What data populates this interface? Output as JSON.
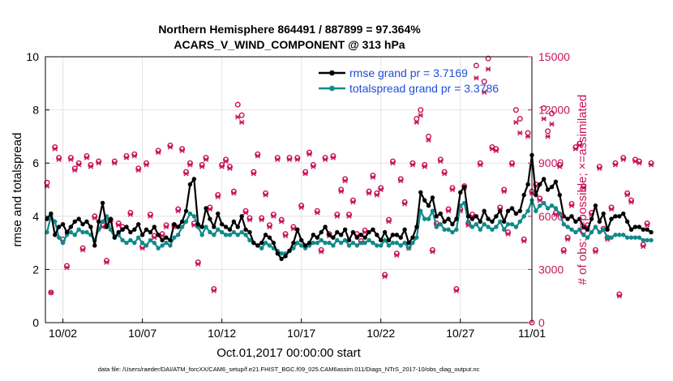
{
  "chart_data": {
    "type": "line",
    "title": [
      "Northern Hemisphere 864491 / 887899 = 97.364%",
      "ACARS_V_WIND_COMPONENT @ 313 hPa"
    ],
    "xlabel": "Oct.01,2017 00:00:00 start",
    "ylabel": "rmse and totalspread",
    "y2label": "# of obs: o=possible; ×=assimilated",
    "xlim": [
      0.4,
      31
    ],
    "ylim": [
      0,
      10
    ],
    "y2lim": [
      0,
      15000
    ],
    "xticks": [
      1.5,
      6.5,
      11.5,
      16.5,
      21.5,
      26.5,
      31
    ],
    "xtick_labels": [
      "10/02",
      "10/07",
      "10/12",
      "10/17",
      "10/22",
      "10/27",
      "11/01"
    ],
    "yticks": [
      0,
      2,
      4,
      6,
      8,
      10
    ],
    "ytick_labels": [
      "0",
      "2",
      "4",
      "6",
      "8",
      "10"
    ],
    "y2ticks": [
      0,
      3000,
      6000,
      9000,
      12000,
      15000
    ],
    "y2tick_labels": [
      "0",
      "3000",
      "6000",
      "9000",
      "12000",
      "15000"
    ],
    "legend_position": "top-right",
    "grid": true,
    "colors": {
      "rmse": "#000000",
      "spread": "#108a8a",
      "obs": "#c8145a",
      "legend_text": "#1f4ed8",
      "grid": "#e3e3e3"
    },
    "time_step": 0.25,
    "time_start": 0.5,
    "series": [
      {
        "name": "rmse",
        "legend": "rmse grand pr = 3.7169",
        "values": [
          3.9,
          4.1,
          3.3,
          3.6,
          3.7,
          3.4,
          3.6,
          3.8,
          3.9,
          3.7,
          3.8,
          3.6,
          2.9,
          3.8,
          4.5,
          3.6,
          3.9,
          3.2,
          3.4,
          3.5,
          3.6,
          3.4,
          3.5,
          3.7,
          3.3,
          3.5,
          3.4,
          3.6,
          3.3,
          3.1,
          3.2,
          3.1,
          3.7,
          3.6,
          3.8,
          4.2,
          5.2,
          5.4,
          3.7,
          3.6,
          4.3,
          3.9,
          3.6,
          4.1,
          3.7,
          3.6,
          3.5,
          3.8,
          3.6,
          4.0,
          3.5,
          3.4,
          3.0,
          2.9,
          3.0,
          3.3,
          3.2,
          3.0,
          2.6,
          2.4,
          2.5,
          2.7,
          3.0,
          3.5,
          3.1,
          2.9,
          3.0,
          3.3,
          3.2,
          3.4,
          3.6,
          3.3,
          3.2,
          3.4,
          3.3,
          3.5,
          3.1,
          3.4,
          3.2,
          3.3,
          3.2,
          3.4,
          3.5,
          3.3,
          3.1,
          3.4,
          3.1,
          3.3,
          3.3,
          3.2,
          3.5,
          3.0,
          3.2,
          3.6,
          4.9,
          4.6,
          4.4,
          4.7,
          4.0,
          4.1,
          3.8,
          3.9,
          3.7,
          3.9,
          4.9,
          5.1,
          4.0,
          3.9,
          4.0,
          3.8,
          4.2,
          3.9,
          3.8,
          4.0,
          4.2,
          3.8,
          4.2,
          4.3,
          4.1,
          4.2,
          4.8,
          5.2,
          6.3,
          4.8,
          5.2,
          5.4,
          5.0,
          5.1,
          5.3,
          4.8,
          4.0,
          3.9,
          4.0,
          3.8,
          3.9,
          3.6,
          3.5,
          3.9,
          4.4,
          3.8,
          4.1,
          3.5,
          3.9,
          4.0,
          4.0,
          4.1,
          3.8,
          3.5,
          3.6,
          3.6,
          3.5,
          3.5,
          3.4
        ]
      },
      {
        "name": "totalspread",
        "legend": "totalspread grand pr = 3.3786",
        "values": [
          3.4,
          4.0,
          3.8,
          3.2,
          3.0,
          3.3,
          3.4,
          3.3,
          3.5,
          3.4,
          3.4,
          3.3,
          3.1,
          3.5,
          3.8,
          4.0,
          3.5,
          3.2,
          3.3,
          3.1,
          3.0,
          3.1,
          3.0,
          3.2,
          3.0,
          2.9,
          3.1,
          3.0,
          2.8,
          2.9,
          3.0,
          2.9,
          3.2,
          3.3,
          3.6,
          3.8,
          4.1,
          4.0,
          3.6,
          3.3,
          3.6,
          3.4,
          3.3,
          3.5,
          3.4,
          3.3,
          3.3,
          3.4,
          3.3,
          3.4,
          3.3,
          3.1,
          3.0,
          2.9,
          2.8,
          3.0,
          2.9,
          2.8,
          2.7,
          2.6,
          2.6,
          2.7,
          2.8,
          3.0,
          2.9,
          2.8,
          2.9,
          3.0,
          3.0,
          3.1,
          3.0,
          3.0,
          2.9,
          3.1,
          3.0,
          3.1,
          2.9,
          3.0,
          2.9,
          3.0,
          3.0,
          3.1,
          3.0,
          2.9,
          2.9,
          3.1,
          2.9,
          3.0,
          3.0,
          2.9,
          3.0,
          2.8,
          3.0,
          3.2,
          4.2,
          3.9,
          3.9,
          4.2,
          3.6,
          3.7,
          3.5,
          3.5,
          3.4,
          3.5,
          4.4,
          4.5,
          3.8,
          3.6,
          3.7,
          3.5,
          3.7,
          3.6,
          3.5,
          3.6,
          3.8,
          3.5,
          3.7,
          3.7,
          3.6,
          3.8,
          4.0,
          4.2,
          4.6,
          4.2,
          4.4,
          4.5,
          4.3,
          4.4,
          4.3,
          4.1,
          3.7,
          3.6,
          3.5,
          3.4,
          3.5,
          3.3,
          3.2,
          3.4,
          3.6,
          3.4,
          3.5,
          3.2,
          3.2,
          3.3,
          3.3,
          3.3,
          3.2,
          3.2,
          3.2,
          3.2,
          3.1,
          3.1,
          3.1
        ]
      },
      {
        "name": "obs_possible",
        "values": [
          7900,
          1700,
          9900,
          9300,
          4700,
          3200,
          9300,
          8700,
          9000,
          4200,
          9400,
          8900,
          6000,
          9100,
          5500,
          3500,
          5800,
          9100,
          5600,
          5400,
          9400,
          6200,
          9500,
          8700,
          4300,
          9000,
          6100,
          4900,
          9700,
          5000,
          5500,
          10000,
          5500,
          6400,
          9800,
          8500,
          9000,
          5600,
          3400,
          8900,
          9300,
          6500,
          1900,
          7200,
          8900,
          9200,
          8800,
          7400,
          12300,
          11700,
          6300,
          5900,
          8500,
          9500,
          5900,
          7300,
          5500,
          6100,
          9300,
          5800,
          5000,
          9300,
          5400,
          9300,
          6600,
          8500,
          9600,
          8900,
          6300,
          4100,
          9300,
          5000,
          9400,
          6100,
          7500,
          8100,
          6100,
          6900,
          5000,
          4600,
          5200,
          7400,
          8300,
          7300,
          7600,
          2700,
          5800,
          9100,
          3900,
          8100,
          6800,
          4300,
          9000,
          11500,
          12000,
          8900,
          10500,
          4100,
          5600,
          9200,
          8500,
          6400,
          7600,
          1900,
          6400,
          7700,
          5600,
          6100,
          14500,
          9000,
          13600,
          14900,
          9900,
          9800,
          6500,
          7500,
          5100,
          9000,
          12000,
          11500,
          4700,
          10700,
          7400,
          7800,
          7000,
          12100,
          10800,
          11800,
          6200,
          8900,
          4100,
          4800,
          6700,
          9900,
          10100,
          7700,
          5500,
          6200,
          4100,
          8800,
          5300,
          4800,
          6500,
          9000,
          1600,
          9300,
          7300,
          6900,
          9200,
          9100,
          4400,
          5600,
          9000
        ]
      },
      {
        "name": "obs_assimilated",
        "values": [
          7700,
          1700,
          9800,
          9200,
          4600,
          3100,
          9200,
          8600,
          8900,
          4100,
          9300,
          8800,
          5900,
          9000,
          5400,
          3400,
          5700,
          9000,
          5500,
          5300,
          9300,
          6100,
          9400,
          8600,
          4200,
          8900,
          6000,
          4800,
          9600,
          4900,
          5400,
          9900,
          5400,
          6300,
          9700,
          8400,
          8900,
          5500,
          3300,
          8800,
          9200,
          6400,
          1800,
          7100,
          8800,
          9100,
          8700,
          7300,
          11600,
          11300,
          6200,
          5800,
          8400,
          9400,
          5800,
          7200,
          5400,
          6000,
          9200,
          5700,
          4900,
          9200,
          5300,
          9200,
          6500,
          8400,
          9500,
          8800,
          6200,
          4000,
          9200,
          4900,
          9300,
          6000,
          7400,
          8000,
          6000,
          6800,
          4900,
          4500,
          5100,
          7300,
          8200,
          7200,
          7500,
          2600,
          5700,
          9000,
          3800,
          8000,
          6700,
          4200,
          8900,
          11300,
          11700,
          8800,
          10300,
          4000,
          5500,
          9100,
          8400,
          6300,
          7500,
          1800,
          6300,
          7600,
          5500,
          6000,
          13800,
          8900,
          13000,
          14300,
          9800,
          9700,
          6400,
          7400,
          5000,
          8900,
          11300,
          10700,
          4600,
          10500,
          7300,
          7700,
          6900,
          11500,
          10500,
          11200,
          6100,
          8800,
          4000,
          4700,
          6600,
          9800,
          10000,
          7600,
          5400,
          6100,
          4000,
          8700,
          5200,
          4700,
          6400,
          8900,
          1500,
          9200,
          7200,
          6800,
          9100,
          9000,
          4300,
          5500,
          8900
        ]
      }
    ]
  },
  "footer": "data file: /Users/raeder/DAI/ATM_forcXX/CAM6_setup/f.e21.FHIST_BGC.f09_025.CAM6assim.011/Diags_NTrS_2017-10/obs_diag_output.nc"
}
